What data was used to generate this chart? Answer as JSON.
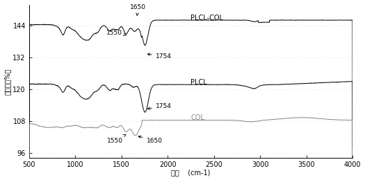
{
  "xlabel": "波长    (cm-1)",
  "ylabel": "吸光度（%）",
  "xlim": [
    500,
    4000
  ],
  "ylim": [
    94,
    152
  ],
  "yticks": [
    96,
    108,
    120,
    132,
    144
  ],
  "xticks": [
    500,
    1000,
    1500,
    2000,
    2500,
    3000,
    3500,
    4000
  ],
  "plcl_col_color": "#000000",
  "plcl_color": "#000000",
  "col_color": "#888888",
  "label_plcl_col": "PLCL-COL",
  "label_plcl": "PLCL",
  "label_col": "COL"
}
